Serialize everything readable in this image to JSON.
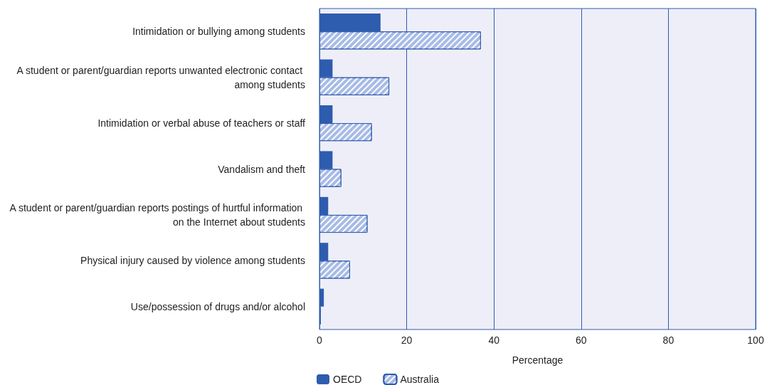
{
  "chart_data": {
    "type": "bar",
    "orientation": "horizontal",
    "xlabel": "Percentage",
    "categories": [
      "Intimidation or bullying among students",
      "A student or parent/guardian reports unwanted electronic contact among students",
      "Intimidation or verbal abuse of teachers or staff",
      "Vandalism and theft",
      "A student or parent/guardian reports postings of hurtful information on the Internet about students",
      "Physical injury caused by violence among students",
      "Use/possession of drugs and/or alcohol"
    ],
    "series": [
      {
        "name": "OECD",
        "color": "#2e5cae",
        "values": [
          14,
          3,
          3,
          3,
          2,
          2,
          1
        ]
      },
      {
        "name": "Australia",
        "color": "#a7bbe6",
        "values": [
          37,
          16,
          12,
          5,
          11,
          7,
          0.3
        ]
      }
    ],
    "xlim": [
      0,
      100
    ],
    "xticks": [
      0,
      20,
      40,
      60,
      80,
      100
    ],
    "grid": "x",
    "legend": "bottom"
  }
}
